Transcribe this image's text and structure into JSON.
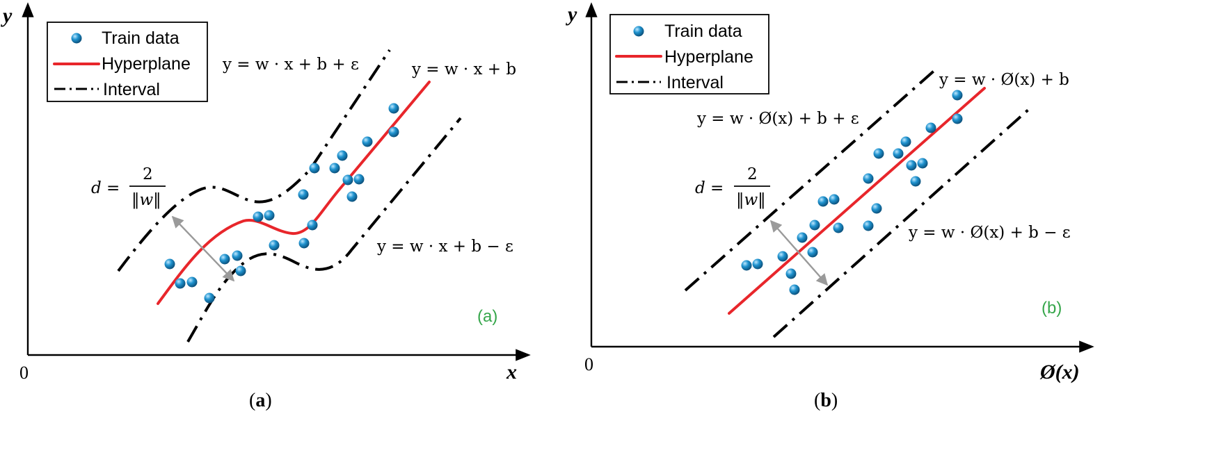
{
  "panel_a": {
    "legend": {
      "train": "Train data",
      "hyperplane": "Hyperplane",
      "interval": "Interval"
    },
    "equations": {
      "upper": "y = w · x + b + ε",
      "center": "y = w · x + b",
      "lower": "y = w · x + b − ε"
    },
    "distance": {
      "lhs": "d =",
      "numerator": "2",
      "denominator": "‖w‖"
    },
    "axes": {
      "x": "x",
      "y": "y",
      "origin": "0"
    },
    "tag": "(a)",
    "caption_open": "(",
    "caption_letter": "a",
    "caption_close": ")"
  },
  "panel_b": {
    "legend": {
      "train": "Train data",
      "hyperplane": "Hyperplane",
      "interval": "Interval"
    },
    "equations": {
      "upper": "y = w · Ø(x) + b + ε",
      "center": "y = w · Ø(x) + b",
      "lower": "y = w · Ø(x) + b − ε"
    },
    "distance": {
      "lhs": "d =",
      "numerator": "2",
      "denominator": "‖w‖"
    },
    "axes": {
      "x": "Ø(x)",
      "y": "y",
      "origin": "0"
    },
    "tag": "(b)",
    "caption_open": "(",
    "caption_letter": "b",
    "caption_close": ")"
  },
  "colors": {
    "points": "#1a8ac4",
    "hyperplane": "#e8262b",
    "interval": "#000000",
    "distance_arrow": "#9a9a9a",
    "tag": "#35a64a"
  }
}
